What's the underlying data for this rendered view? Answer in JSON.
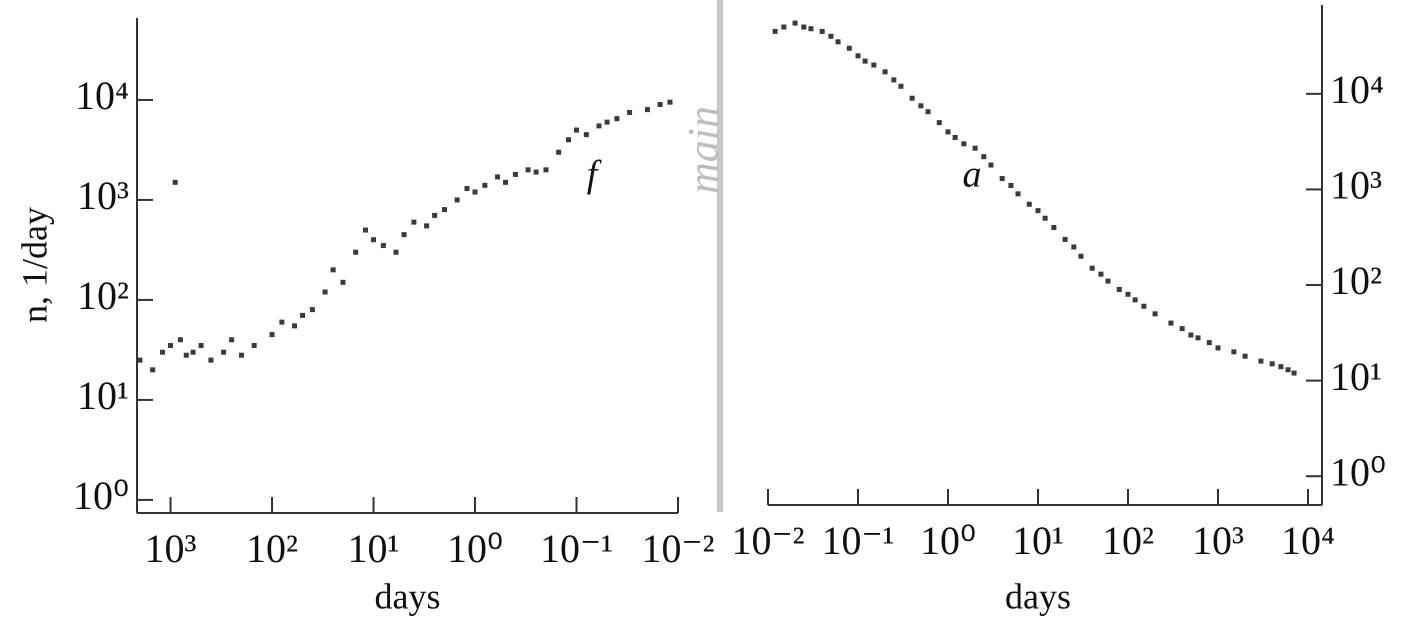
{
  "divider_label": "main",
  "chart_data": [
    {
      "type": "scatter",
      "x_label": "days",
      "y_label": "n, 1/day",
      "annotation": "f",
      "log_x": true,
      "log_y": true,
      "y_axis_side": "left",
      "color": "#3a3a3a",
      "xlim": [
        2140,
        0.01
      ],
      "ylim": [
        0.74,
        66000
      ],
      "xticks": [
        {
          "value": 1000,
          "label": "10³"
        },
        {
          "value": 100,
          "label": "10²"
        },
        {
          "value": 10,
          "label": "10¹"
        },
        {
          "value": 1,
          "label": "10⁰"
        },
        {
          "value": 0.1,
          "label": "10⁻¹"
        },
        {
          "value": 0.01,
          "label": "10⁻²"
        }
      ],
      "yticks": [
        {
          "value": 1,
          "label": "10⁰"
        },
        {
          "value": 10,
          "label": "10¹"
        },
        {
          "value": 100,
          "label": "10²"
        },
        {
          "value": 1000,
          "label": "10³"
        },
        {
          "value": 10000,
          "label": "10⁴"
        }
      ],
      "x": [
        2000,
        1500,
        1200,
        1000,
        900,
        800,
        700,
        600,
        500,
        400,
        300,
        250,
        200,
        150,
        100,
        80,
        60,
        50,
        40,
        30,
        25,
        20,
        15,
        12,
        10,
        8,
        6,
        5,
        4,
        3,
        2.5,
        2,
        1.5,
        1.2,
        1,
        0.8,
        0.6,
        0.5,
        0.4,
        0.3,
        0.25,
        0.2,
        0.15,
        0.12,
        0.1,
        0.08,
        0.06,
        0.05,
        0.04,
        0.03,
        0.02,
        0.015,
        0.012
      ],
      "values": [
        25,
        20,
        30,
        35,
        1500,
        40,
        28,
        30,
        35,
        25,
        30,
        40,
        28,
        35,
        45,
        60,
        55,
        70,
        80,
        120,
        200,
        150,
        300,
        500,
        400,
        350,
        300,
        450,
        600,
        550,
        700,
        800,
        1000,
        1300,
        1200,
        1400,
        1700,
        1500,
        1800,
        2000,
        1900,
        2000,
        3000,
        4000,
        5000,
        4500,
        5500,
        6000,
        6500,
        7500,
        8000,
        9000,
        9500
      ]
    },
    {
      "type": "scatter",
      "x_label": "days",
      "annotation": "a",
      "log_x": true,
      "log_y": true,
      "y_axis_side": "right",
      "color": "#3a3a3a",
      "xlim": [
        0.01,
        10000
      ],
      "ylim": [
        0.5,
        85000
      ],
      "xticks": [
        {
          "value": 0.01,
          "label": "10⁻²"
        },
        {
          "value": 0.1,
          "label": "10⁻¹"
        },
        {
          "value": 1,
          "label": "10⁰"
        },
        {
          "value": 10,
          "label": "10¹"
        },
        {
          "value": 100,
          "label": "10²"
        },
        {
          "value": 1000,
          "label": "10³"
        },
        {
          "value": 10000,
          "label": "10⁴"
        }
      ],
      "yticks": [
        {
          "value": 1,
          "label": "10⁰"
        },
        {
          "value": 10,
          "label": "10¹"
        },
        {
          "value": 100,
          "label": "10²"
        },
        {
          "value": 1000,
          "label": "10³"
        },
        {
          "value": 10000,
          "label": "10⁴"
        }
      ],
      "x": [
        0.012,
        0.015,
        0.02,
        0.025,
        0.03,
        0.04,
        0.05,
        0.06,
        0.08,
        0.1,
        0.12,
        0.15,
        0.2,
        0.25,
        0.3,
        0.4,
        0.5,
        0.6,
        0.8,
        1,
        1.2,
        1.5,
        2,
        2.5,
        3,
        4,
        5,
        6,
        8,
        10,
        12,
        15,
        20,
        25,
        30,
        40,
        50,
        60,
        80,
        100,
        120,
        150,
        200,
        300,
        400,
        500,
        600,
        800,
        1000,
        1500,
        2000,
        3000,
        4000,
        5000,
        6000,
        7000
      ],
      "values": [
        45000,
        50000,
        55000,
        50000,
        48000,
        45000,
        40000,
        35000,
        30000,
        25000,
        22000,
        20000,
        17000,
        14000,
        12000,
        9000,
        7500,
        6500,
        5000,
        4000,
        3500,
        3000,
        2700,
        2200,
        1800,
        1300,
        1100,
        900,
        700,
        600,
        500,
        400,
        300,
        250,
        200,
        150,
        130,
        110,
        90,
        80,
        70,
        60,
        50,
        40,
        35,
        30,
        28,
        25,
        22,
        20,
        18,
        16,
        15,
        14,
        13,
        12
      ]
    }
  ]
}
